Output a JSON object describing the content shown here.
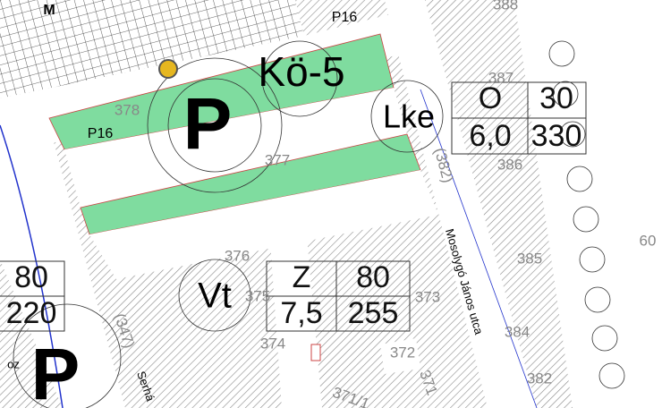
{
  "map": {
    "block_label": "M",
    "road_labels": [
      "P16",
      "P16"
    ],
    "zones": [
      "Kö-5",
      "Lke",
      "Vt"
    ],
    "parking": [
      "P",
      "P"
    ],
    "parcels": [
      "378",
      "377",
      "387",
      "386",
      "385",
      "376",
      "375",
      "374",
      "373",
      "372",
      "384",
      "382",
      "371/1",
      "371",
      "388"
    ],
    "streets": [
      "(382)",
      "Mosolygó János utca",
      "(347)",
      "Serhá"
    ],
    "tables": [
      {
        "zone": "O",
        "height": "30",
        "ratio": "6,0",
        "size": "330"
      },
      {
        "zone": "Z",
        "height": "80",
        "ratio": "7,5",
        "size": "255"
      }
    ],
    "partial_table": {
      "height": "80",
      "size": "220"
    },
    "side_label": "60",
    "fragments": [
      "oz"
    ]
  }
}
